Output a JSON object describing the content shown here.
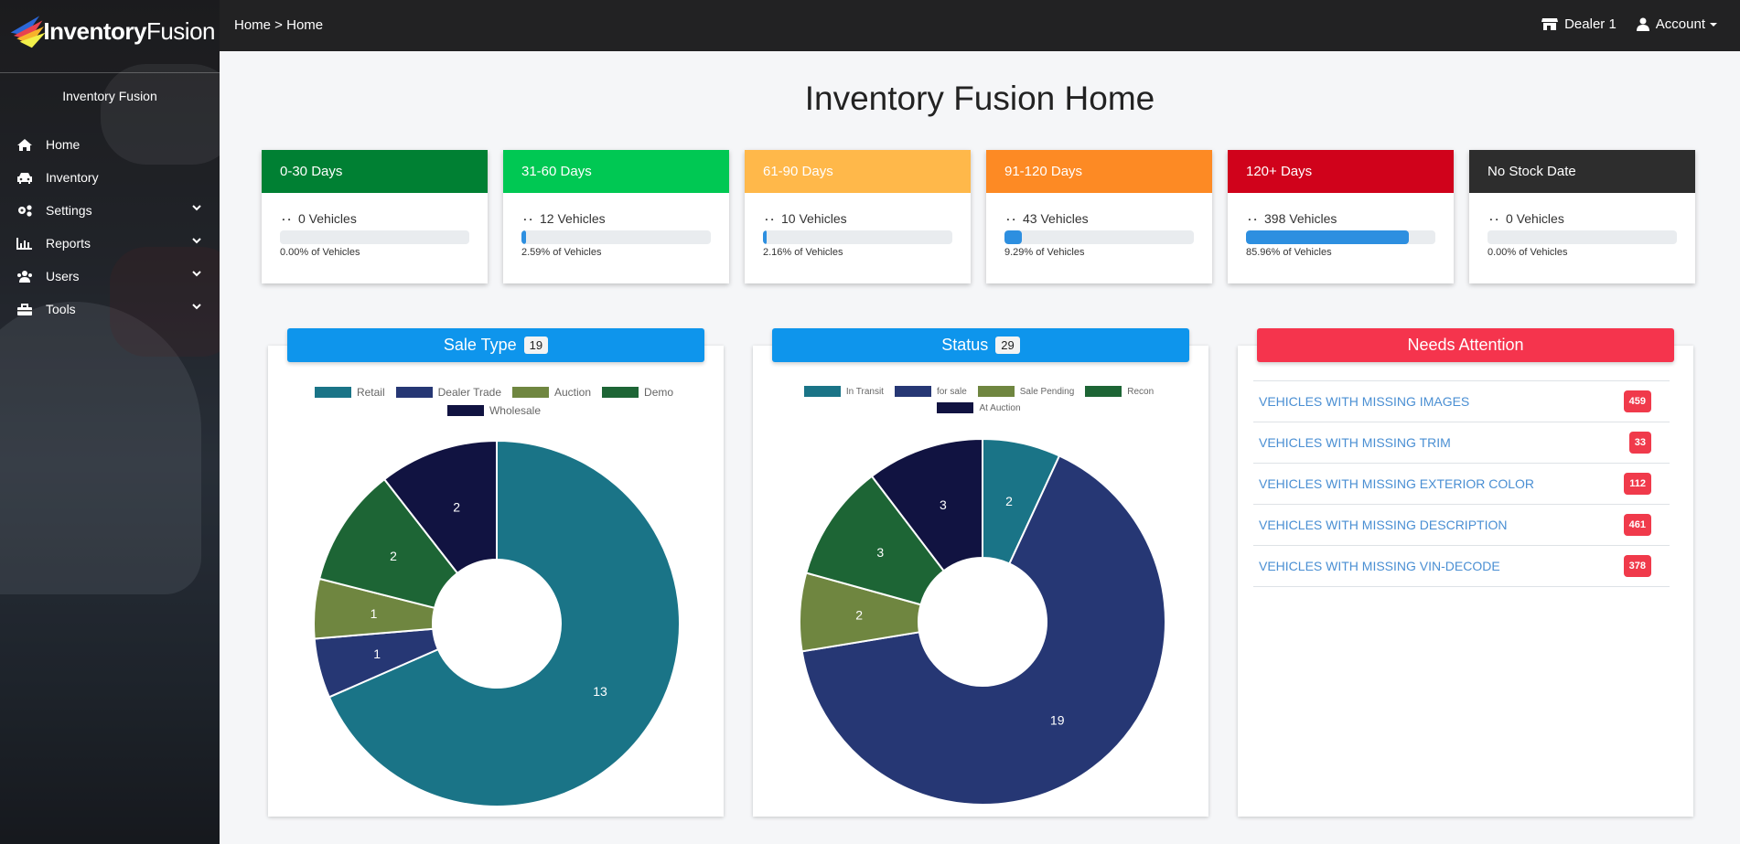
{
  "app": {
    "logo_bold": "Inventory",
    "logo_light": "Fusion",
    "brand": "Inventory Fusion"
  },
  "topbar": {
    "breadcrumb": "Home > Home",
    "dealer": "Dealer 1",
    "account": "Account"
  },
  "sidebar": {
    "items": [
      {
        "label": "Home",
        "icon": "home-icon"
      },
      {
        "label": "Inventory",
        "icon": "car-icon"
      },
      {
        "label": "Settings",
        "icon": "cogs-icon"
      },
      {
        "label": "Reports",
        "icon": "chart-icon"
      },
      {
        "label": "Users",
        "icon": "users-icon"
      },
      {
        "label": "Tools",
        "icon": "toolbox-icon"
      }
    ]
  },
  "page": {
    "title": "Inventory Fusion Home"
  },
  "stats": [
    {
      "label": "0-30 Days",
      "count": "0 Vehicles",
      "pct": "0.00% of Vehicles",
      "fill": 0.0,
      "color": "#008033"
    },
    {
      "label": "31-60 Days",
      "count": "12 Vehicles",
      "pct": "2.59% of Vehicles",
      "fill": 0.0259,
      "color": "#00c853"
    },
    {
      "label": "61-90 Days",
      "count": "10 Vehicles",
      "pct": "2.16% of Vehicles",
      "fill": 0.0216,
      "color": "#ffb84a"
    },
    {
      "label": "91-120 Days",
      "count": "43 Vehicles",
      "pct": "9.29% of Vehicles",
      "fill": 0.0929,
      "color": "#fd8a24"
    },
    {
      "label": "120+ Days",
      "count": "398 Vehicles",
      "pct": "85.96% of Vehicles",
      "fill": 0.8596,
      "color": "#d0021b"
    },
    {
      "label": "No Stock Date",
      "count": "0 Vehicles",
      "pct": "0.00% of Vehicles",
      "fill": 0.0,
      "color": "#2d2d2d"
    }
  ],
  "panels": {
    "sale_type": {
      "title": "Sale Type",
      "count": "19"
    },
    "status": {
      "title": "Status",
      "count": "29"
    },
    "attention": {
      "title": "Needs Attention",
      "items": [
        {
          "label": "VEHICLES WITH MISSING IMAGES",
          "count": "459"
        },
        {
          "label": "VEHICLES WITH MISSING TRIM",
          "count": "33"
        },
        {
          "label": "VEHICLES WITH MISSING EXTERIOR COLOR",
          "count": "112"
        },
        {
          "label": "VEHICLES WITH MISSING DESCRIPTION",
          "count": "461"
        },
        {
          "label": "VEHICLES WITH MISSING VIN-DECODE",
          "count": "378"
        }
      ]
    }
  },
  "colors": {
    "panel_blue": "#0e95ec",
    "panel_red": "#f5344d"
  },
  "chart_data": [
    {
      "type": "pie",
      "title": "Sale Type",
      "categories": [
        "Retail",
        "Dealer Trade",
        "Auction",
        "Demo",
        "Wholesale"
      ],
      "values": [
        13,
        1,
        1,
        2,
        2
      ],
      "colors": [
        "#1a7487",
        "#263774",
        "#6f8640",
        "#1d6535",
        "#111341"
      ]
    },
    {
      "type": "pie",
      "title": "Status",
      "categories": [
        "In Transit",
        "for sale",
        "Sale Pending",
        "Recon",
        "At Auction"
      ],
      "values": [
        2,
        19,
        2,
        3,
        3
      ],
      "colors": [
        "#1a7487",
        "#263774",
        "#6f8640",
        "#1d6535",
        "#111341"
      ]
    }
  ]
}
